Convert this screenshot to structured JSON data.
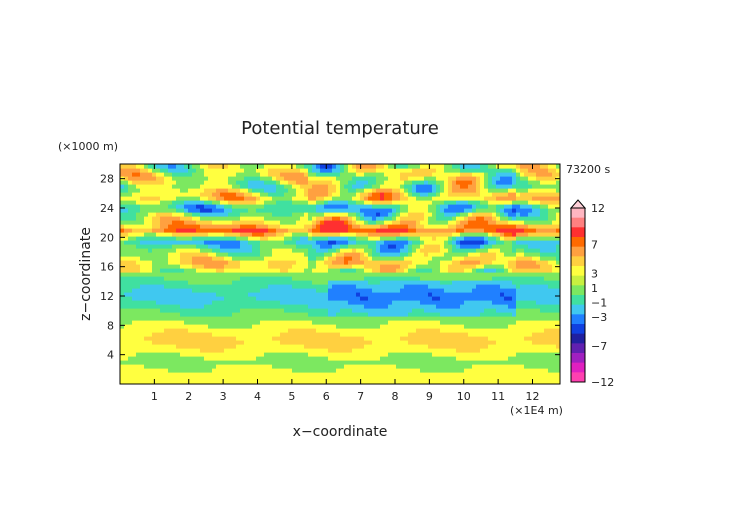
{
  "chart_data": {
    "type": "heatmap",
    "title": "Potential temperature",
    "xlabel": "x−coordinate",
    "ylabel": "z−coordinate",
    "x_unit": "(×1E4 m)",
    "y_unit": "(×1000 m)",
    "time_label": "73200 s",
    "xlim": [
      0,
      12.8
    ],
    "ylim": [
      0,
      30
    ],
    "x_ticks": [
      "1",
      "2",
      "3",
      "4",
      "5",
      "6",
      "7",
      "8",
      "9",
      "10",
      "11",
      "12"
    ],
    "y_ticks": [
      "4",
      "8",
      "12",
      "16",
      "20",
      "24",
      "28"
    ],
    "legend_placement": "right",
    "colorbar_labels": [
      "12",
      "7",
      "3",
      "1",
      "−1",
      "−3",
      "−7",
      "−12"
    ],
    "colorbar_colors": [
      "#ffb6c1",
      "#ff8080",
      "#ff3030",
      "#ff6a00",
      "#ffa040",
      "#ffd040",
      "#ffff40",
      "#c8f040",
      "#7ce860",
      "#40e0a0",
      "#40c8f0",
      "#2080ff",
      "#1040e0",
      "#2020a0",
      "#6020b0",
      "#a020c0",
      "#e020c0",
      "#ff40b0"
    ],
    "colorbar_values": [
      12,
      9,
      7,
      5,
      3,
      2,
      1,
      0,
      -1,
      -2,
      -3,
      -4,
      -5,
      -7,
      -8,
      -9,
      -11,
      -12
    ],
    "value_colors": [
      {
        "value": -4,
        "color": "#1040e0"
      },
      {
        "value": -3,
        "color": "#2080ff"
      },
      {
        "value": -2,
        "color": "#40c8f0"
      },
      {
        "value": -1,
        "color": "#40e0a0"
      },
      {
        "value": 0,
        "color": "#7ce860"
      },
      {
        "value": 1,
        "color": "#ffff40"
      },
      {
        "value": 2,
        "color": "#ffd040"
      },
      {
        "value": 3,
        "color": "#ffa040"
      },
      {
        "value": 4,
        "color": "#ff6a00"
      },
      {
        "value": 5,
        "color": "#ff3030"
      }
    ],
    "field": {
      "x_range": [
        0,
        12.8
      ],
      "z_range": [
        0,
        30
      ],
      "note_bands": [
        {
          "z": 1.5,
          "value": 1
        },
        {
          "z": 3,
          "value": 0
        },
        {
          "z": 4.5,
          "value": 1
        },
        {
          "z": 6,
          "value": 2
        },
        {
          "z": 7.5,
          "value": 1
        },
        {
          "z": 9,
          "value": 0
        },
        {
          "z": 10.5,
          "value": -1
        },
        {
          "z": 12,
          "value": -2
        },
        {
          "z": 13.5,
          "value": -1
        },
        {
          "z": 15,
          "value": 0
        },
        {
          "z": 16.5,
          "value": 2
        },
        {
          "z": 18,
          "value": 0
        },
        {
          "z": 19.5,
          "value": -2
        },
        {
          "z": 21,
          "value": 4
        },
        {
          "z": 22.5,
          "value": 1
        },
        {
          "z": 24,
          "value": -2
        },
        {
          "z": 25.5,
          "value": 2
        },
        {
          "z": 27,
          "value": 0
        },
        {
          "z": 28.5,
          "value": 1
        },
        {
          "z": 30,
          "value": 0
        }
      ]
    }
  }
}
